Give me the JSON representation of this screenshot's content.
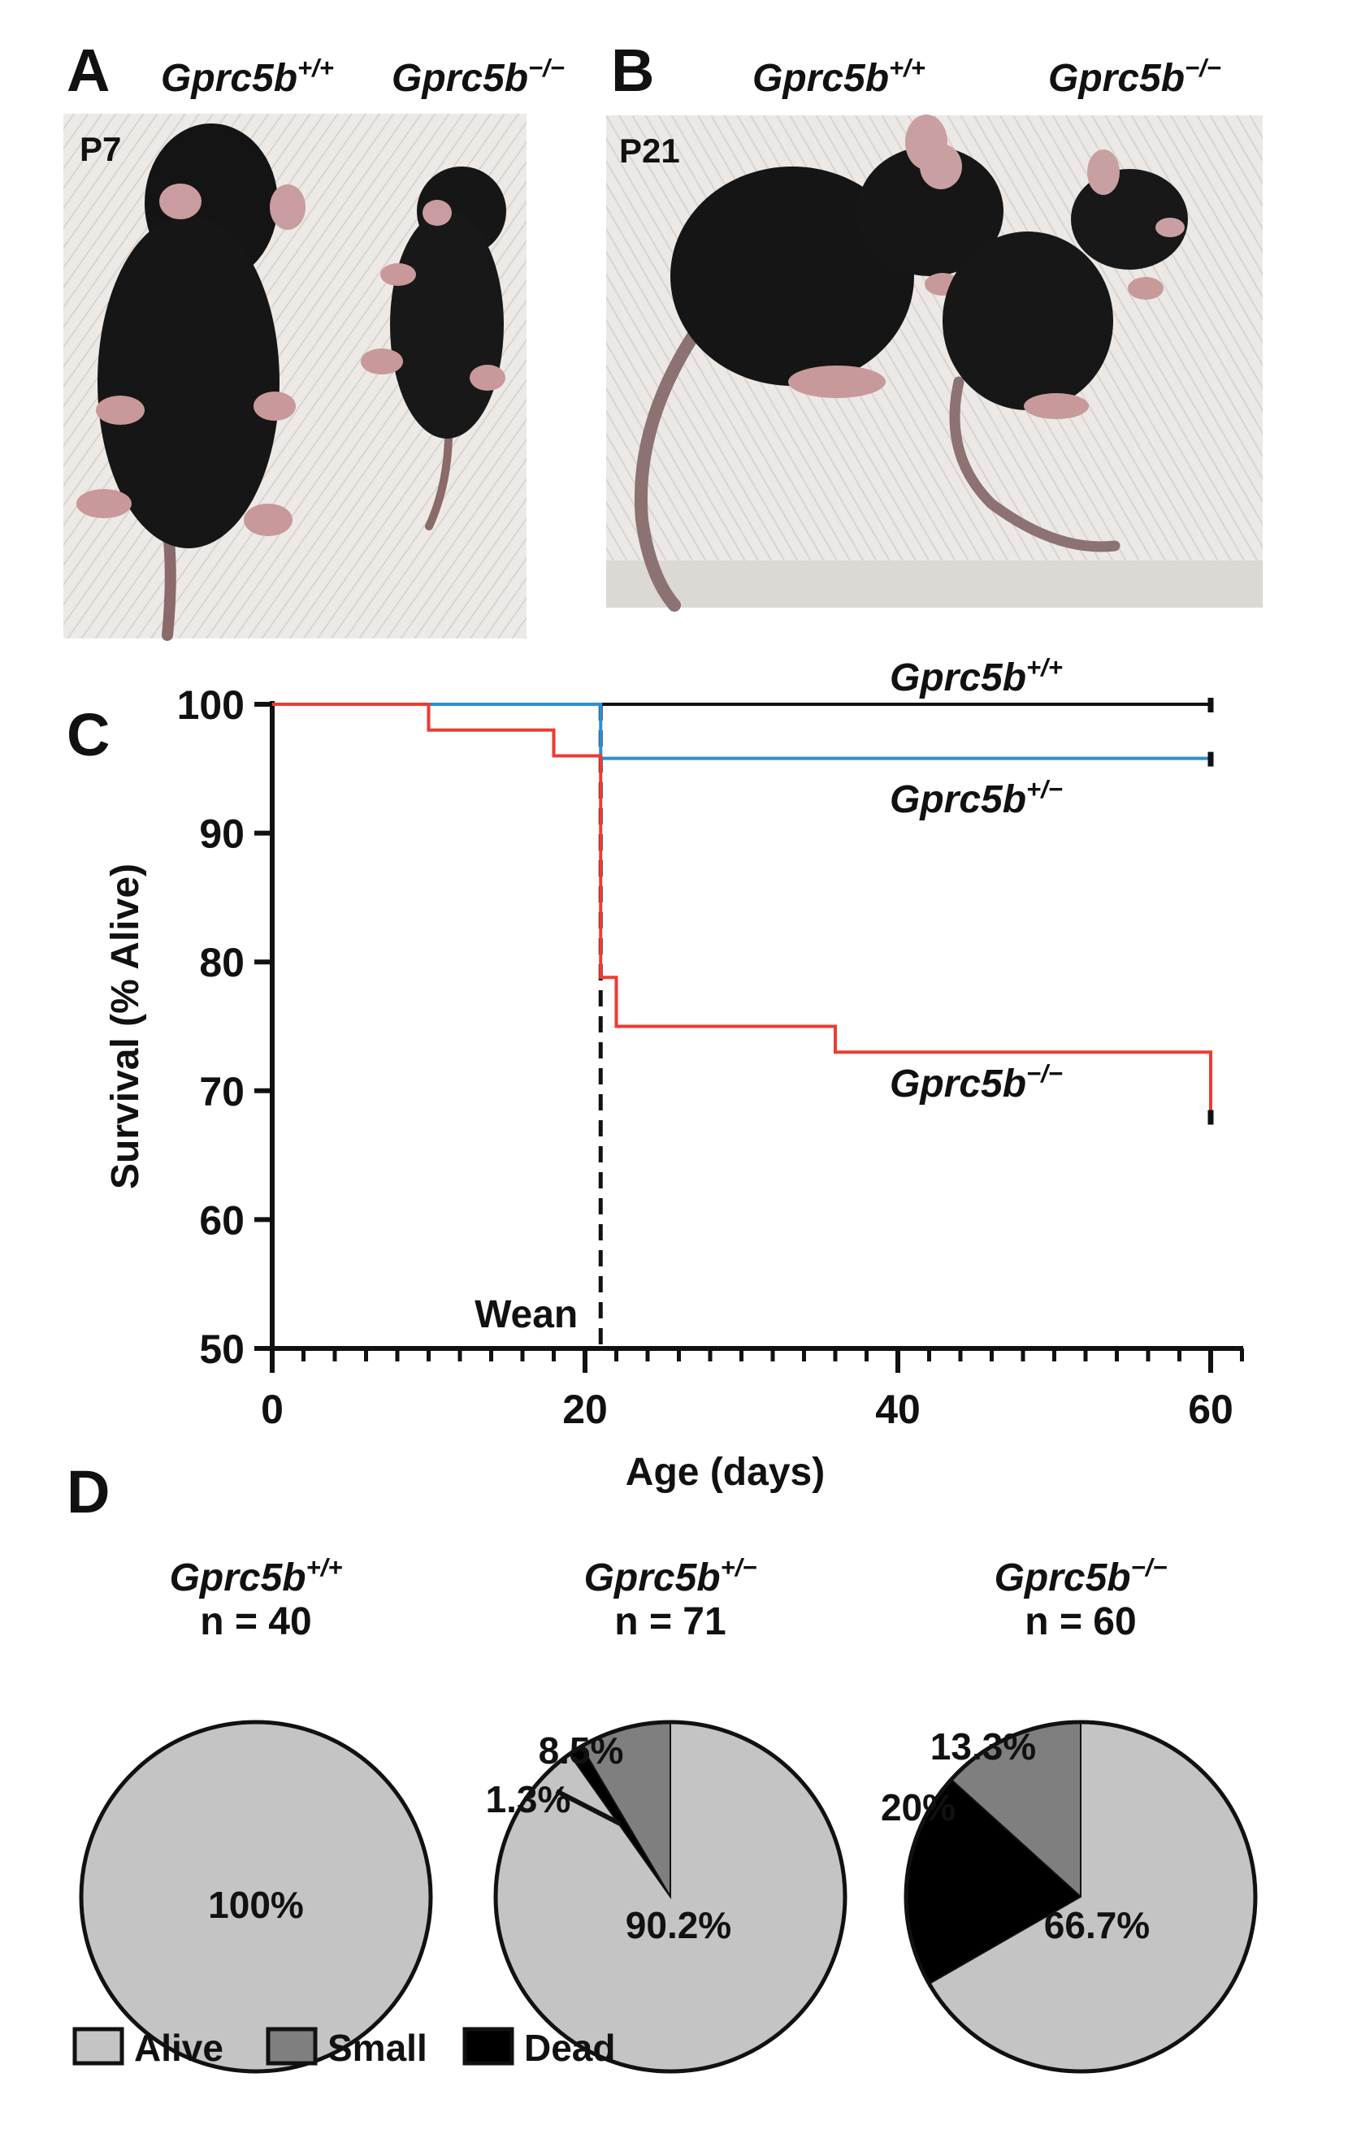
{
  "panels": {
    "A": {
      "label": "A",
      "age": "P7",
      "genotypes": [
        {
          "base": "Gprc5b",
          "sup": "+/+"
        },
        {
          "base": "Gprc5b",
          "sup": "−/−"
        }
      ]
    },
    "B": {
      "label": "B",
      "age": "P21",
      "genotypes": [
        {
          "base": "Gprc5b",
          "sup": "+/+"
        },
        {
          "base": "Gprc5b",
          "sup": "−/−"
        }
      ]
    },
    "C": {
      "label": "C"
    },
    "D": {
      "label": "D"
    }
  },
  "chart_data": [
    {
      "type": "line",
      "subtype": "kaplan-meier survival",
      "ylabel": "Survival (% Alive)",
      "xlabel": "Age (days)",
      "xlim": [
        0,
        62
      ],
      "ylim": [
        50,
        100
      ],
      "xticks": [
        0,
        20,
        40,
        60
      ],
      "yticks": [
        50,
        60,
        70,
        80,
        90,
        100
      ],
      "annotation": {
        "text": "Wean",
        "x": 21
      },
      "series": [
        {
          "name": "Gprc5b+/+",
          "label_base": "Gprc5b",
          "label_sup": "+/+",
          "color": "#111111",
          "x": [
            0,
            60
          ],
          "y": [
            100,
            100
          ]
        },
        {
          "name": "Gprc5b+/−",
          "label_base": "Gprc5b",
          "label_sup": "+/−",
          "color": "#2a8fd0",
          "x": [
            0,
            21,
            21,
            60
          ],
          "y": [
            100,
            100,
            95.8,
            95.8
          ]
        },
        {
          "name": "Gprc5b−/−",
          "label_base": "Gprc5b",
          "label_sup": "−/−",
          "color": "#ee3b33",
          "x": [
            0,
            10,
            10,
            18,
            18,
            21,
            21,
            22,
            22,
            36,
            36,
            60,
            60
          ],
          "y": [
            100,
            100,
            98,
            98,
            96,
            96,
            78.8,
            78.8,
            75,
            75,
            73,
            73,
            68
          ]
        }
      ]
    },
    {
      "type": "pie",
      "title_base": "Gprc5b",
      "title_sup": "+/+",
      "n": "n = 40",
      "slices": [
        {
          "label": "Alive",
          "value": 100,
          "text": "100%"
        }
      ]
    },
    {
      "type": "pie",
      "title_base": "Gprc5b",
      "title_sup": "+/−",
      "n": "n = 71",
      "slices": [
        {
          "label": "Small",
          "value": 8.5,
          "text": "8.5%"
        },
        {
          "label": "Dead",
          "value": 1.3,
          "text": "1.3%"
        },
        {
          "label": "Alive",
          "value": 90.2,
          "text": "90.2%"
        }
      ]
    },
    {
      "type": "pie",
      "title_base": "Gprc5b",
      "title_sup": "−/−",
      "n": "n = 60",
      "slices": [
        {
          "label": "Small",
          "value": 13.3,
          "text": "13.3%"
        },
        {
          "label": "Dead",
          "value": 20,
          "text": "20%"
        },
        {
          "label": "Alive",
          "value": 66.7,
          "text": "66.7%"
        }
      ]
    }
  ],
  "legend": [
    {
      "label": "Alive",
      "color": "#c4c4c4"
    },
    {
      "label": "Small",
      "color": "#7f7f7f"
    },
    {
      "label": "Dead",
      "color": "#000000"
    }
  ],
  "colors": {
    "alive": "#c4c4c4",
    "small": "#7f7f7f",
    "dead": "#000000",
    "axis": "#111111"
  }
}
